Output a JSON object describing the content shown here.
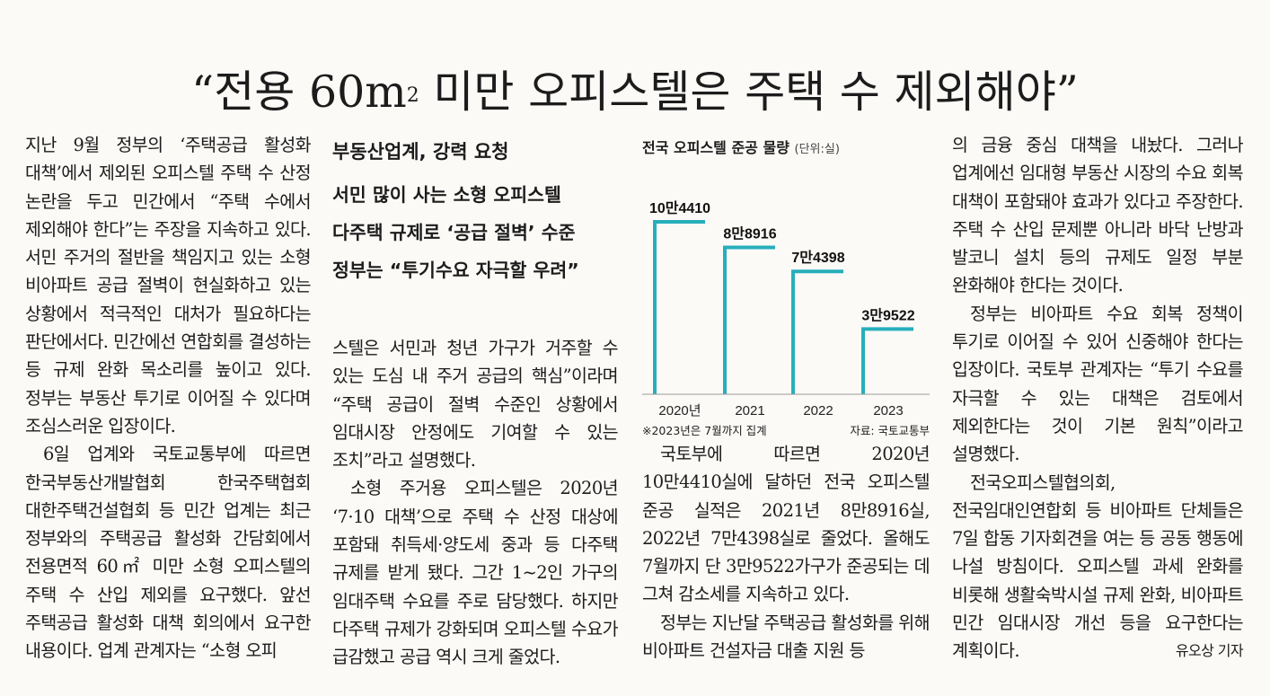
{
  "headline": {
    "open_quote": "“",
    "text_a": "전용 60m",
    "sup": "2",
    "text_b": " 미만 오피스텔은 주택 수 제외해야",
    "close_quote": "”"
  },
  "column1": {
    "p1": "지난 9월 정부의 ‘주택공급 활성화 대책’에서 제외된 오피스텔 주택 수 산정 논란을 두고 민간에서 “주택 수에서 제외해야 한다”는 주장을 지속하고 있다. 서민 주거의 절반을 책임지고 있는 소형 비아파트 공급 절벽이 현실화하고 있는 상황에서 적극적인 대처가 필요하다는 판단에서다. 민간에선 연합회를 결성하는 등 규제 완화 목소리를 높이고 있다. 정부는 부동산 투기로 이어질 수 있다며 조심스러운 입장이다.",
    "p2": "6일 업계와 국토교통부에 따르면 한국부동산개발협회 한국주택협회 대한주택건설협회 등 민간 업계는 최근 정부와의 주택공급 활성화 간담회에서 전용면적 60㎡ 미만 소형 오피스텔의 주택 수 산입 제외를 요구했다. 앞선 주택공급 활성화 대책 회의에서 요구한 내용이다. 업계 관계자는 “소형 오피"
  },
  "column2": {
    "kicker": "부동산업계, 강력 요청",
    "sub_lines": [
      "서민 많이 사는 소형 오피스텔",
      "다주택 규제로 ‘공급 절벽’ 수준",
      "정부는 “투기수요 자극할 우려”"
    ],
    "p1": "스텔은 서민과 청년 가구가 거주할 수 있는 도심 내 주거 공급의 핵심”이라며 “주택 공급이 절벽 수준인 상황에서 임대시장 안정에도 기여할 수 있는 조치”라고 설명했다.",
    "p2": "소형 주거용 오피스텔은 2020년 ‘7·10 대책’으로 주택 수 산정 대상에 포함돼 취득세·양도세 중과 등 다주택 규제를 받게 됐다. 그간 1~2인 가구의 임대주택 수요를 주로 담당했다. 하지만 다주택 규제가 강화되며 오피스텔 수요가 급감했고 공급 역시 크게 줄었다."
  },
  "chart_data": {
    "type": "bar",
    "title": "전국 오피스텔 준공 물량",
    "unit": "(단위:실)",
    "categories": [
      "2020년",
      "2021",
      "2022",
      "2023"
    ],
    "values": [
      104410,
      88916,
      74398,
      39522
    ],
    "value_labels": [
      "10만4410",
      "8만8916",
      "7만4398",
      "3만9522"
    ],
    "note": "※2023년은 7월까지 집계",
    "source": "자료: 국토교통부",
    "bar_color": "#27aebb",
    "ylim": [
      0,
      104410
    ]
  },
  "column3": {
    "p1": "국토부에 따르면 2020년 10만4410실에 달하던 전국 오피스텔 준공 실적은 2021년 8만8916실, 2022년 7만4398실로 줄었다. 올해도 7월까지 단 3만9522가구가 준공되는 데 그쳐 감소세를 지속하고 있다.",
    "p2": "정부는 지난달 주택공급 활성화를 위해 비아파트 건설자금 대출 지원 등"
  },
  "column4": {
    "p1": "의 금융 중심 대책을 내놨다. 그러나 업계에선 임대형 부동산 시장의 수요 회복 대책이 포함돼야 효과가 있다고 주장한다. 주택 수 산입 문제뿐 아니라 바닥 난방과 발코니 설치 등의 규제도 일정 부분 완화해야 한다는 것이다.",
    "p2": "정부는 비아파트 수요 회복 정책이 투기로 이어질 수 있어 신중해야 한다는 입장이다. 국토부 관계자는 “투기 수요를 자극할 수 있는 대책은 검토에서 제외한다는 것이 기본 원칙”이라고 설명했다.",
    "p3": "전국오피스텔협의회, 전국임대인연합회 등 비아파트 단체들은 7일 합동 기자회견을 여는 등 공동 행동에 나설 방침이다. 오피스텔 과세 완화를 비롯해 생활숙박시설 규제 완화, 비아파트 민간 임대시장 개선 등을 요구한다는 계획이다.",
    "byline": "유오상 기자"
  }
}
